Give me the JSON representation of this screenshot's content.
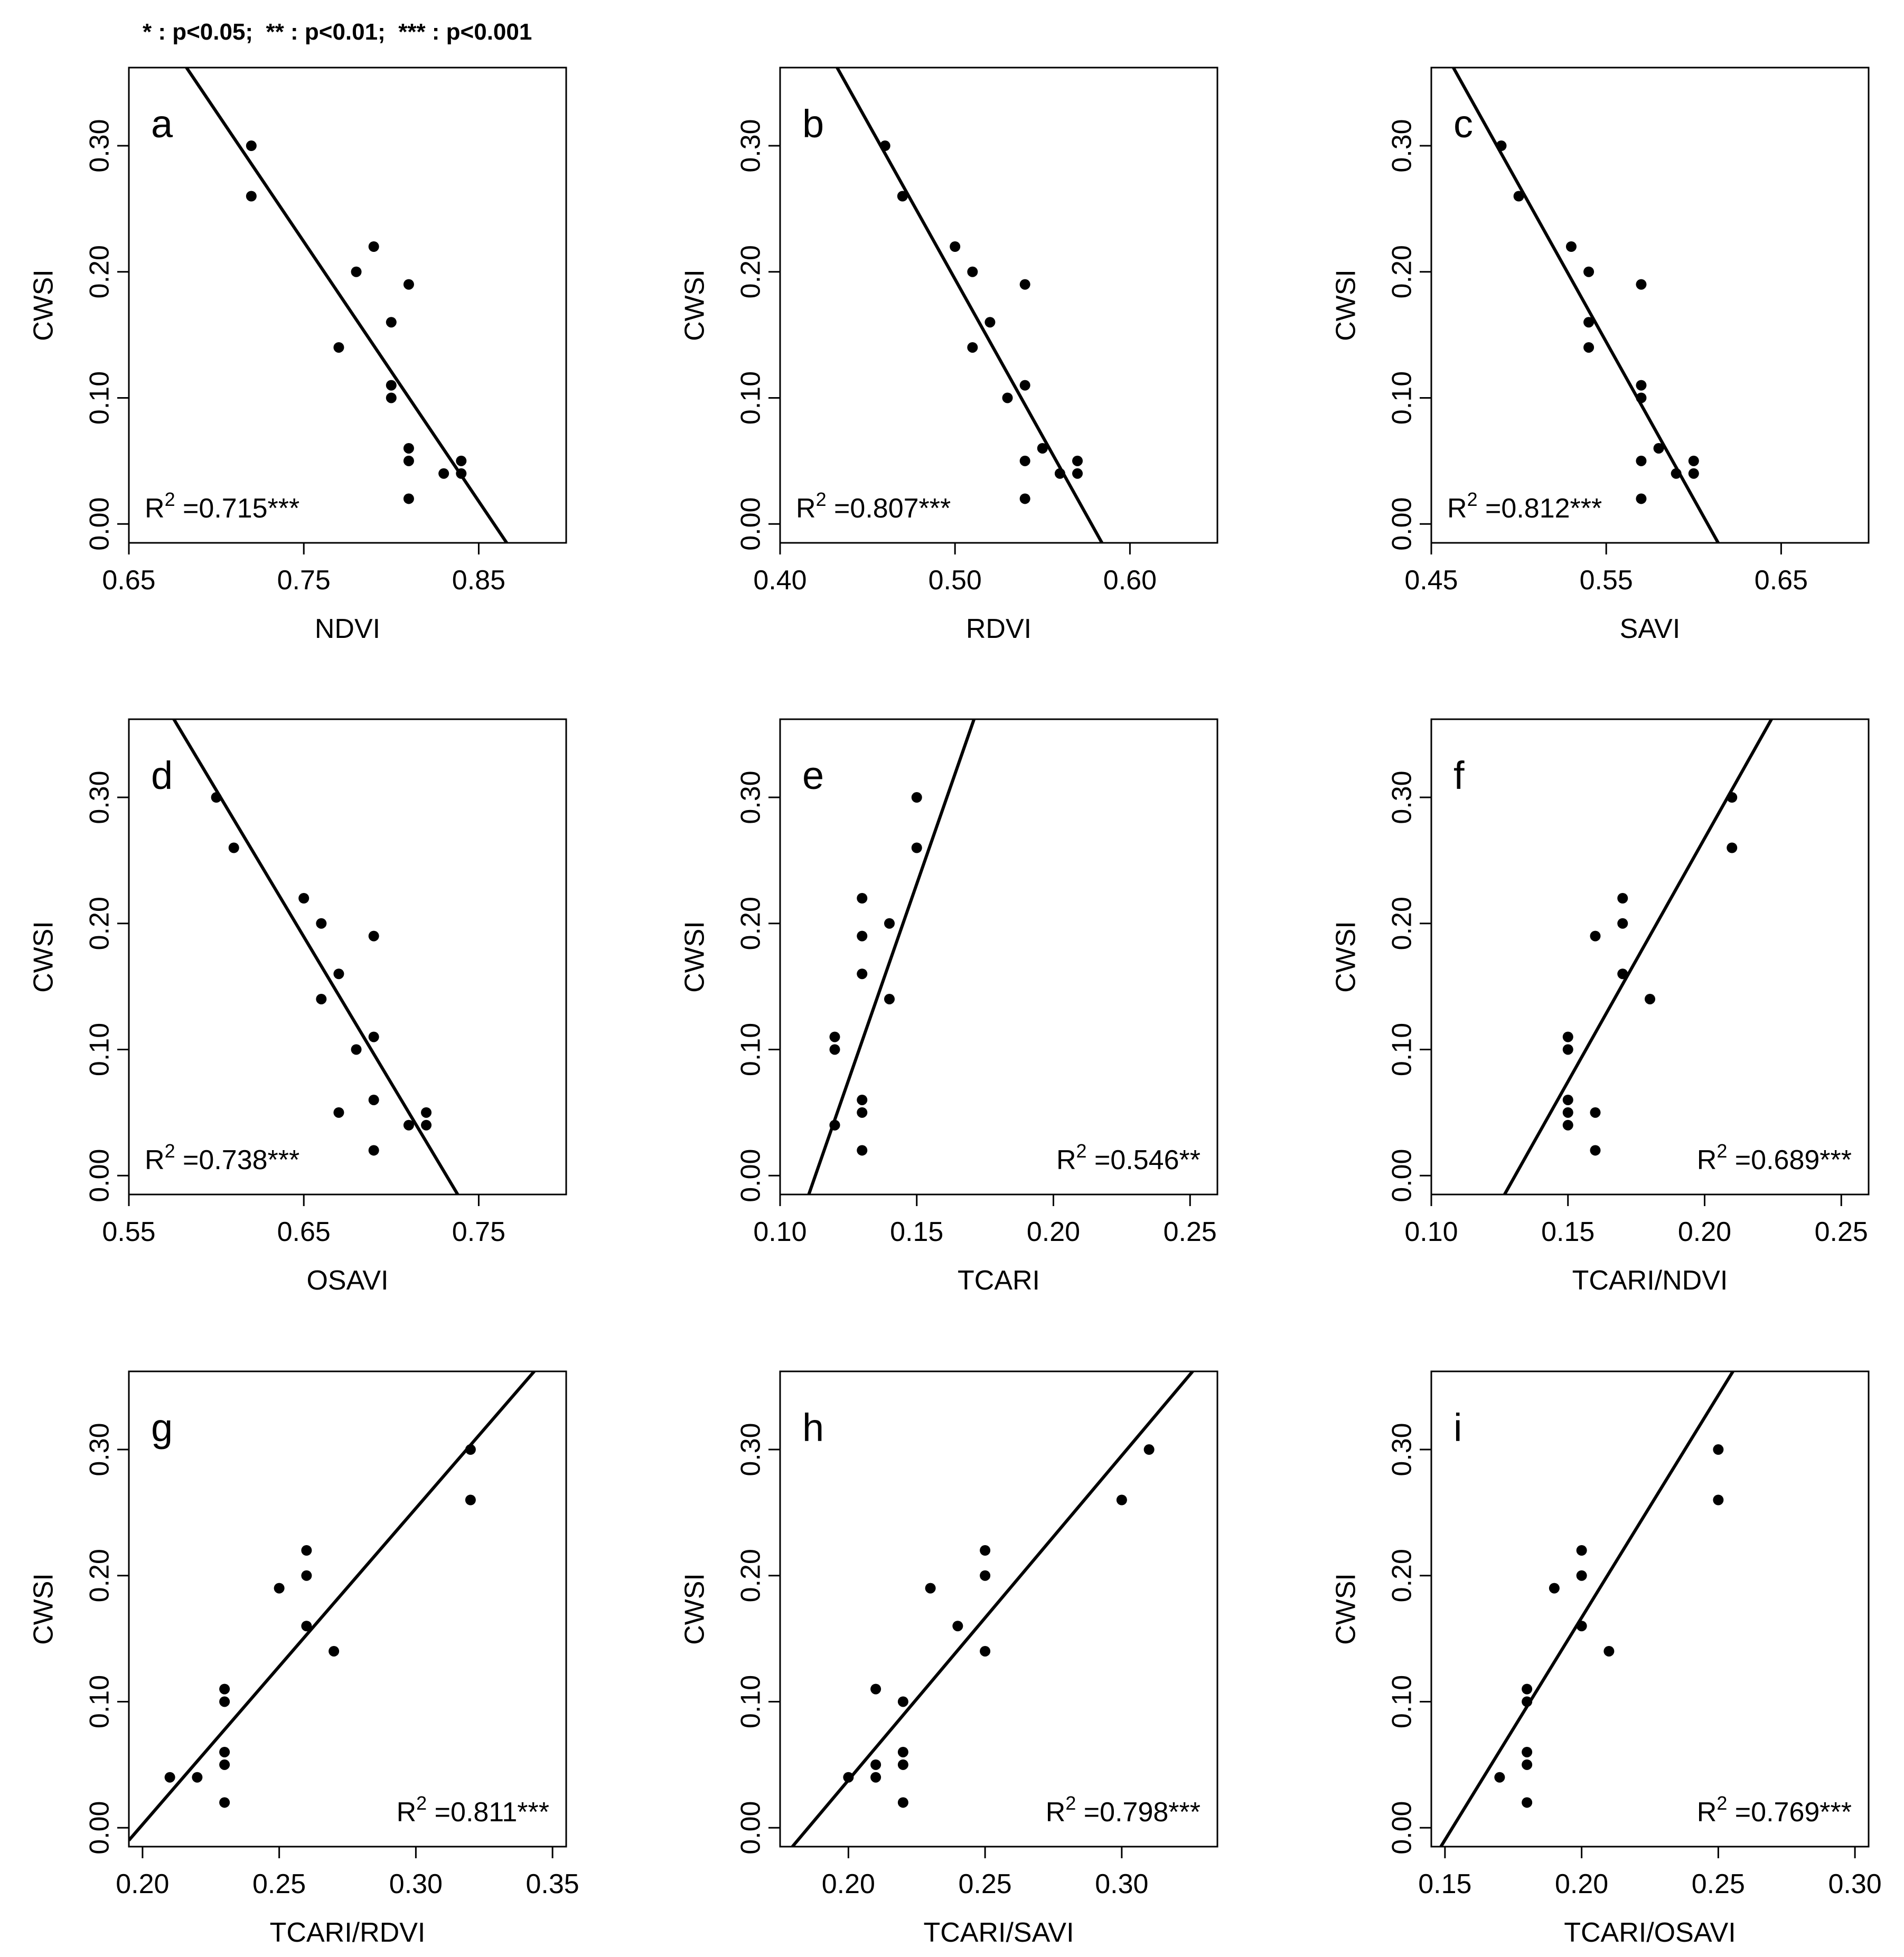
{
  "significance_note": "* : p<0.05;  ** : p<0.01;  *** : p<0.001",
  "colors": {
    "axis": "#000000",
    "points": "#000000",
    "line": "#000000",
    "background": "#ffffff"
  },
  "chart_data": [
    {
      "type": "scatter",
      "panel": "a",
      "xlabel": "NDVI",
      "ylabel": "CWSI",
      "xlim": [
        0.65,
        0.9
      ],
      "ylim": [
        -0.015,
        0.362
      ],
      "xticks": [
        "0.65",
        "0.75",
        "0.85"
      ],
      "xtick_values": [
        0.65,
        0.75,
        0.85
      ],
      "yticks": [
        "0.00",
        "0.10",
        "0.20",
        "0.30"
      ],
      "ytick_values": [
        0.0,
        0.1,
        0.2,
        0.3
      ],
      "r2_prefix": "R",
      "r2_exp": "2",
      "r2_value": " =0.715***",
      "r2_placement": "bottom-left",
      "points": [
        [
          0.72,
          0.3
        ],
        [
          0.72,
          0.26
        ],
        [
          0.79,
          0.22
        ],
        [
          0.78,
          0.2
        ],
        [
          0.81,
          0.19
        ],
        [
          0.8,
          0.16
        ],
        [
          0.77,
          0.14
        ],
        [
          0.8,
          0.11
        ],
        [
          0.8,
          0.1
        ],
        [
          0.81,
          0.06
        ],
        [
          0.81,
          0.05
        ],
        [
          0.84,
          0.05
        ],
        [
          0.83,
          0.04
        ],
        [
          0.84,
          0.04
        ],
        [
          0.81,
          0.02
        ]
      ],
      "fit_line": [
        [
          0.681,
          0.366
        ],
        [
          0.866,
          -0.015
        ]
      ]
    },
    {
      "type": "scatter",
      "panel": "b",
      "xlabel": "RDVI",
      "ylabel": "CWSI",
      "xlim": [
        0.4,
        0.65
      ],
      "ylim": [
        -0.015,
        0.362
      ],
      "xticks": [
        "0.40",
        "0.50",
        "0.60"
      ],
      "xtick_values": [
        0.4,
        0.5,
        0.6
      ],
      "yticks": [
        "0.00",
        "0.10",
        "0.20",
        "0.30"
      ],
      "ytick_values": [
        0.0,
        0.1,
        0.2,
        0.3
      ],
      "r2_prefix": "R",
      "r2_exp": "2",
      "r2_value": " =0.807***",
      "r2_placement": "bottom-left",
      "points": [
        [
          0.46,
          0.3
        ],
        [
          0.47,
          0.26
        ],
        [
          0.5,
          0.22
        ],
        [
          0.51,
          0.2
        ],
        [
          0.54,
          0.19
        ],
        [
          0.52,
          0.16
        ],
        [
          0.51,
          0.14
        ],
        [
          0.54,
          0.11
        ],
        [
          0.53,
          0.1
        ],
        [
          0.55,
          0.06
        ],
        [
          0.54,
          0.05
        ],
        [
          0.57,
          0.05
        ],
        [
          0.56,
          0.04
        ],
        [
          0.57,
          0.04
        ],
        [
          0.54,
          0.02
        ]
      ],
      "fit_line": [
        [
          0.431,
          0.366
        ],
        [
          0.584,
          -0.015
        ]
      ]
    },
    {
      "type": "scatter",
      "panel": "c",
      "xlabel": "SAVI",
      "ylabel": "CWSI",
      "xlim": [
        0.45,
        0.7
      ],
      "ylim": [
        -0.015,
        0.362
      ],
      "xticks": [
        "0.45",
        "0.55",
        "0.65"
      ],
      "xtick_values": [
        0.45,
        0.55,
        0.65
      ],
      "yticks": [
        "0.00",
        "0.10",
        "0.20",
        "0.30"
      ],
      "ytick_values": [
        0.0,
        0.1,
        0.2,
        0.3
      ],
      "r2_prefix": "R",
      "r2_exp": "2",
      "r2_value": " =0.812***",
      "r2_placement": "bottom-left",
      "points": [
        [
          0.49,
          0.3
        ],
        [
          0.5,
          0.26
        ],
        [
          0.53,
          0.22
        ],
        [
          0.54,
          0.2
        ],
        [
          0.57,
          0.19
        ],
        [
          0.54,
          0.16
        ],
        [
          0.54,
          0.14
        ],
        [
          0.57,
          0.11
        ],
        [
          0.57,
          0.1
        ],
        [
          0.58,
          0.06
        ],
        [
          0.57,
          0.05
        ],
        [
          0.6,
          0.05
        ],
        [
          0.59,
          0.04
        ],
        [
          0.6,
          0.04
        ],
        [
          0.57,
          0.02
        ]
      ],
      "fit_line": [
        [
          0.461,
          0.366
        ],
        [
          0.614,
          -0.015
        ]
      ]
    },
    {
      "type": "scatter",
      "panel": "d",
      "xlabel": "OSAVI",
      "ylabel": "CWSI",
      "xlim": [
        0.55,
        0.8
      ],
      "ylim": [
        -0.015,
        0.362
      ],
      "xticks": [
        "0.55",
        "0.65",
        "0.75"
      ],
      "xtick_values": [
        0.55,
        0.65,
        0.75
      ],
      "yticks": [
        "0.00",
        "0.10",
        "0.20",
        "0.30"
      ],
      "ytick_values": [
        0.0,
        0.1,
        0.2,
        0.3
      ],
      "r2_prefix": "R",
      "r2_exp": "2",
      "r2_value": " =0.738***",
      "r2_placement": "bottom-left",
      "points": [
        [
          0.6,
          0.3
        ],
        [
          0.61,
          0.26
        ],
        [
          0.65,
          0.22
        ],
        [
          0.66,
          0.2
        ],
        [
          0.69,
          0.19
        ],
        [
          0.67,
          0.16
        ],
        [
          0.66,
          0.14
        ],
        [
          0.69,
          0.11
        ],
        [
          0.68,
          0.1
        ],
        [
          0.69,
          0.06
        ],
        [
          0.67,
          0.05
        ],
        [
          0.72,
          0.05
        ],
        [
          0.71,
          0.04
        ],
        [
          0.72,
          0.04
        ],
        [
          0.69,
          0.02
        ]
      ],
      "fit_line": [
        [
          0.574,
          0.366
        ],
        [
          0.738,
          -0.015
        ]
      ]
    },
    {
      "type": "scatter",
      "panel": "e",
      "xlabel": "TCARI",
      "ylabel": "CWSI",
      "xlim": [
        0.1,
        0.26
      ],
      "ylim": [
        -0.015,
        0.362
      ],
      "xticks": [
        "0.10",
        "0.15",
        "0.20",
        "0.25"
      ],
      "xtick_values": [
        0.1,
        0.15,
        0.2,
        0.25
      ],
      "yticks": [
        "0.00",
        "0.10",
        "0.20",
        "0.30"
      ],
      "ytick_values": [
        0.0,
        0.1,
        0.2,
        0.3
      ],
      "r2_prefix": "R",
      "r2_exp": "2",
      "r2_value": " =0.546**",
      "r2_placement": "bottom-right",
      "points": [
        [
          0.15,
          0.3
        ],
        [
          0.15,
          0.26
        ],
        [
          0.13,
          0.22
        ],
        [
          0.14,
          0.2
        ],
        [
          0.13,
          0.19
        ],
        [
          0.13,
          0.16
        ],
        [
          0.14,
          0.14
        ],
        [
          0.12,
          0.11
        ],
        [
          0.12,
          0.1
        ],
        [
          0.13,
          0.06
        ],
        [
          0.13,
          0.05
        ],
        [
          0.12,
          0.04
        ],
        [
          0.12,
          0.04
        ],
        [
          0.13,
          0.02
        ]
      ],
      "fit_line": [
        [
          0.1105,
          -0.015
        ],
        [
          0.1716,
          0.366
        ]
      ]
    },
    {
      "type": "scatter",
      "panel": "f",
      "xlabel": "TCARI/NDVI",
      "ylabel": "CWSI",
      "xlim": [
        0.1,
        0.26
      ],
      "ylim": [
        -0.015,
        0.362
      ],
      "xticks": [
        "0.10",
        "0.15",
        "0.20",
        "0.25"
      ],
      "xtick_values": [
        0.1,
        0.15,
        0.2,
        0.25
      ],
      "yticks": [
        "0.00",
        "0.10",
        "0.20",
        "0.30"
      ],
      "ytick_values": [
        0.0,
        0.1,
        0.2,
        0.3
      ],
      "r2_prefix": "R",
      "r2_exp": "2",
      "r2_value": " =0.689***",
      "r2_placement": "bottom-right",
      "points": [
        [
          0.21,
          0.3
        ],
        [
          0.21,
          0.26
        ],
        [
          0.17,
          0.22
        ],
        [
          0.17,
          0.2
        ],
        [
          0.16,
          0.19
        ],
        [
          0.17,
          0.16
        ],
        [
          0.18,
          0.14
        ],
        [
          0.15,
          0.11
        ],
        [
          0.15,
          0.1
        ],
        [
          0.15,
          0.06
        ],
        [
          0.15,
          0.05
        ],
        [
          0.16,
          0.05
        ],
        [
          0.15,
          0.04
        ],
        [
          0.16,
          0.02
        ]
      ],
      "fit_line": [
        [
          0.1268,
          -0.015
        ],
        [
          0.2255,
          0.366
        ]
      ]
    },
    {
      "type": "scatter",
      "panel": "g",
      "xlabel": "TCARI/RDVI",
      "ylabel": "CWSI",
      "xlim": [
        0.195,
        0.355
      ],
      "ylim": [
        -0.015,
        0.362
      ],
      "xticks": [
        "0.20",
        "0.25",
        "0.30",
        "0.35"
      ],
      "xtick_values": [
        0.2,
        0.25,
        0.3,
        0.35
      ],
      "yticks": [
        "0.00",
        "0.10",
        "0.20",
        "0.30"
      ],
      "ytick_values": [
        0.0,
        0.1,
        0.2,
        0.3
      ],
      "r2_prefix": "R",
      "r2_exp": "2",
      "r2_value": " =0.811***",
      "r2_placement": "bottom-right",
      "points": [
        [
          0.32,
          0.3
        ],
        [
          0.32,
          0.26
        ],
        [
          0.26,
          0.22
        ],
        [
          0.26,
          0.2
        ],
        [
          0.25,
          0.19
        ],
        [
          0.26,
          0.16
        ],
        [
          0.27,
          0.14
        ],
        [
          0.23,
          0.11
        ],
        [
          0.23,
          0.1
        ],
        [
          0.23,
          0.06
        ],
        [
          0.23,
          0.05
        ],
        [
          0.21,
          0.04
        ],
        [
          0.22,
          0.04
        ],
        [
          0.23,
          0.02
        ]
      ],
      "fit_line": [
        [
          0.195,
          -0.01
        ],
        [
          0.3449,
          0.366
        ]
      ]
    },
    {
      "type": "scatter",
      "panel": "h",
      "xlabel": "TCARI/SAVI",
      "ylabel": "CWSI",
      "xlim": [
        0.175,
        0.335
      ],
      "ylim": [
        -0.015,
        0.362
      ],
      "xticks": [
        "0.20",
        "0.25",
        "0.30"
      ],
      "xtick_values": [
        0.2,
        0.25,
        0.3
      ],
      "yticks": [
        "0.00",
        "0.10",
        "0.20",
        "0.30"
      ],
      "ytick_values": [
        0.0,
        0.1,
        0.2,
        0.3
      ],
      "r2_prefix": "R",
      "r2_exp": "2",
      "r2_value": " =0.798***",
      "r2_placement": "bottom-right",
      "points": [
        [
          0.31,
          0.3
        ],
        [
          0.3,
          0.26
        ],
        [
          0.25,
          0.22
        ],
        [
          0.25,
          0.2
        ],
        [
          0.23,
          0.19
        ],
        [
          0.24,
          0.16
        ],
        [
          0.25,
          0.14
        ],
        [
          0.21,
          0.11
        ],
        [
          0.22,
          0.1
        ],
        [
          0.22,
          0.06
        ],
        [
          0.21,
          0.05
        ],
        [
          0.22,
          0.05
        ],
        [
          0.2,
          0.04
        ],
        [
          0.21,
          0.04
        ],
        [
          0.22,
          0.02
        ]
      ],
      "fit_line": [
        [
          0.1795,
          -0.015
        ],
        [
          0.3275,
          0.366
        ]
      ]
    },
    {
      "type": "scatter",
      "panel": "i",
      "xlabel": "TCARI/OSAVI",
      "ylabel": "CWSI",
      "xlim": [
        0.145,
        0.305
      ],
      "ylim": [
        -0.015,
        0.362
      ],
      "xticks": [
        "0.15",
        "0.20",
        "0.25",
        "0.30"
      ],
      "xtick_values": [
        0.15,
        0.2,
        0.25,
        0.3
      ],
      "yticks": [
        "0.00",
        "0.10",
        "0.20",
        "0.30"
      ],
      "ytick_values": [
        0.0,
        0.1,
        0.2,
        0.3
      ],
      "r2_prefix": "R",
      "r2_exp": "2",
      "r2_value": " =0.769***",
      "r2_placement": "bottom-right",
      "points": [
        [
          0.25,
          0.3
        ],
        [
          0.25,
          0.26
        ],
        [
          0.2,
          0.22
        ],
        [
          0.2,
          0.2
        ],
        [
          0.19,
          0.19
        ],
        [
          0.2,
          0.16
        ],
        [
          0.21,
          0.14
        ],
        [
          0.18,
          0.11
        ],
        [
          0.18,
          0.1
        ],
        [
          0.18,
          0.06
        ],
        [
          0.18,
          0.05
        ],
        [
          0.17,
          0.04
        ],
        [
          0.18,
          0.02
        ]
      ],
      "fit_line": [
        [
          0.1485,
          -0.015
        ],
        [
          0.2565,
          0.366
        ]
      ]
    }
  ]
}
